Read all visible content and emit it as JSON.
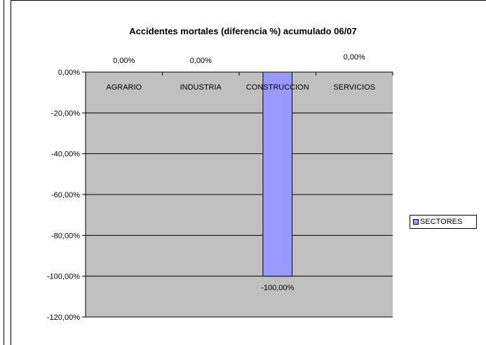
{
  "chart_data": {
    "type": "bar",
    "title": "Accidentes mortales (diferencia %) acumulado 06/07",
    "xlabel": "",
    "ylabel": "",
    "categories": [
      "AGRARIO",
      "INDUSTRIA",
      "CONSTRUCCION",
      "SERVICIOS"
    ],
    "series": [
      {
        "name": "SECTORES",
        "values": [
          0,
          0,
          -100,
          0
        ],
        "data_labels": [
          "0,00%",
          "0,00%",
          "-100,00%",
          "0,00%"
        ],
        "color": "#9999ff"
      }
    ],
    "ylim": [
      -120,
      0
    ],
    "yticks": [
      0,
      -20,
      -40,
      -60,
      -80,
      -100,
      -120
    ],
    "ytick_labels": [
      "0,00%",
      "-20,00%",
      "-40,00%",
      "-60,00%",
      "-80,00%",
      "-100,00%",
      "-120,00%"
    ],
    "grid": true,
    "plot_background": "#c0c0c0",
    "legend_position": "right"
  }
}
